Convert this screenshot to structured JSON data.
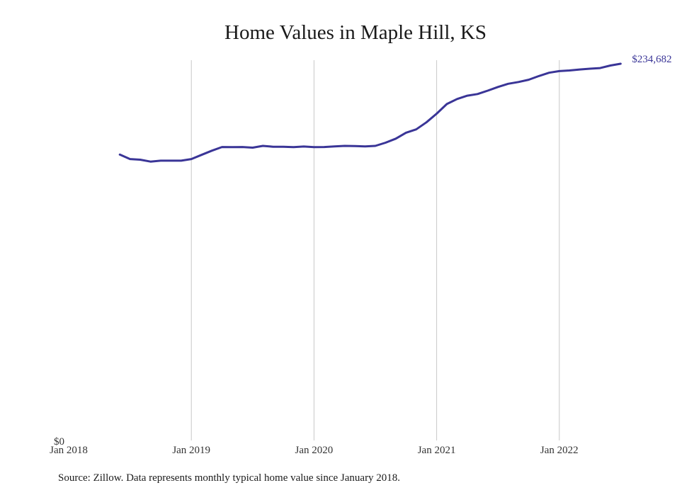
{
  "chart_data": {
    "type": "line",
    "title": "Home Values in Maple Hill, KS",
    "source": "Source: Zillow. Data represents monthly typical home value since January 2018.",
    "x_ticks": [
      "Jan 2018",
      "Jan 2019",
      "Jan 2020",
      "Jan 2021",
      "Jan 2022"
    ],
    "y_tick_label": "$0",
    "end_value_label": "$234,682",
    "ylim": [
      0,
      234682
    ],
    "grid": "vertical",
    "line_color": "#3a3597",
    "series": [
      {
        "x": [
          "2018-06",
          "2018-07",
          "2018-08",
          "2018-09",
          "2018-10",
          "2018-11",
          "2018-12",
          "2019-01",
          "2019-02",
          "2019-03",
          "2019-04",
          "2019-05",
          "2019-06",
          "2019-07",
          "2019-08",
          "2019-09",
          "2019-10",
          "2019-11",
          "2019-12",
          "2020-01",
          "2020-02",
          "2020-03",
          "2020-04",
          "2020-05",
          "2020-06",
          "2020-07",
          "2020-08",
          "2020-09",
          "2020-10",
          "2020-11",
          "2020-12",
          "2021-01",
          "2021-02",
          "2021-03",
          "2021-04",
          "2021-05",
          "2021-06",
          "2021-07",
          "2021-08",
          "2021-09",
          "2021-10",
          "2021-11",
          "2021-12",
          "2022-01",
          "2022-02",
          "2022-03",
          "2022-04",
          "2022-05",
          "2022-06",
          "2022-07"
        ],
        "values": [
          178100,
          175300,
          174900,
          173700,
          174300,
          174300,
          174300,
          175300,
          177900,
          180500,
          182800,
          182700,
          182800,
          182400,
          183500,
          183000,
          183000,
          182700,
          183100,
          182700,
          182800,
          183200,
          183500,
          183400,
          183200,
          183500,
          185500,
          188000,
          191700,
          193800,
          198200,
          203600,
          209600,
          212700,
          214800,
          215800,
          217900,
          220200,
          222200,
          223300,
          224700,
          227000,
          229100,
          230100,
          230500,
          231100,
          231600,
          232000,
          233600,
          234682
        ]
      }
    ]
  }
}
